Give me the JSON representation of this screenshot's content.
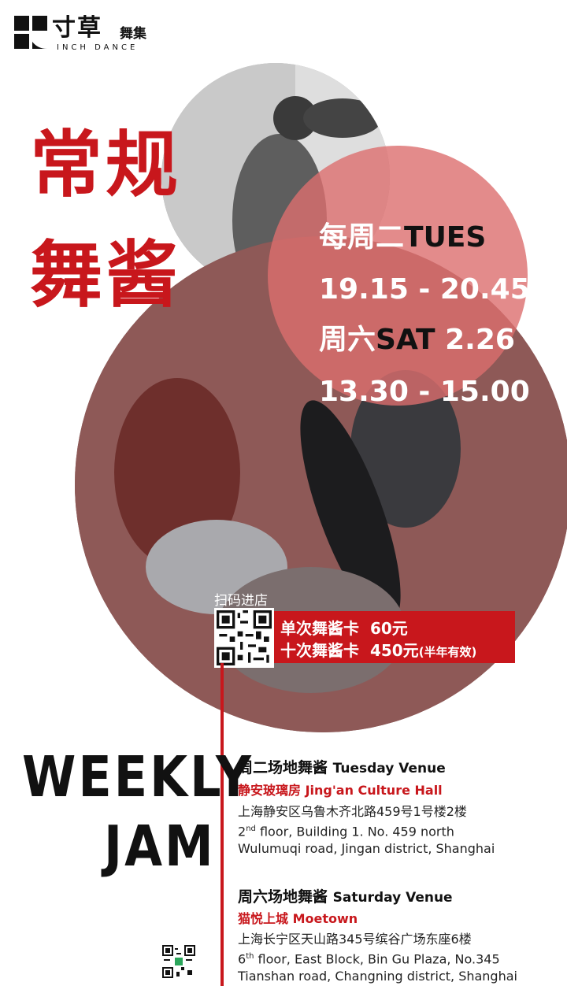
{
  "brand": {
    "cn_main": "寸草",
    "cn_sub": "舞集",
    "en": "INCH DANCE"
  },
  "title": {
    "line1": "常规",
    "line2": "舞酱"
  },
  "schedule": {
    "tue_cn": "每周二",
    "tue_en": "TUES",
    "tue_time": "19.15 - 20.45",
    "sat_cn": "周六",
    "sat_en": "SAT",
    "sat_date": "2.26",
    "sat_time": "13.30 - 15.00"
  },
  "store": {
    "scan_label": "扫码进店",
    "single_label": "单次舞酱卡",
    "single_price": "60元",
    "ten_label": "十次舞酱卡",
    "ten_price": "450元",
    "ten_note": "(半年有效)"
  },
  "headline": {
    "line1": "WEEKLY",
    "line2": "JAM"
  },
  "tuesday_venue": {
    "title_cn": "周二场地舞酱",
    "title_en": "Tuesday Venue",
    "name_cn": "静安玻璃房",
    "name_en": "Jing'an Culture Hall",
    "addr_cn": "上海静安区乌鲁木齐北路459号1号楼2楼",
    "addr_en_1a": "2",
    "addr_en_1sup": "nd",
    "addr_en_1b": " floor, Building 1. No. 459 north",
    "addr_en_2": "Wulumuqi road, Jingan district, Shanghai"
  },
  "saturday_venue": {
    "title_cn": "周六场地舞酱",
    "title_en": "Saturday Venue",
    "name_cn": "猫悦上城",
    "name_en": "Moetown",
    "addr_cn": "上海长宁区天山路345号缤谷广场东座6楼",
    "addr_en_1a": "6",
    "addr_en_1sup": "th",
    "addr_en_1b": "  floor, East Block, Bin Gu Plaza, No.345",
    "addr_en_2": "Tianshan road, Changning district, Shanghai"
  },
  "colors": {
    "accent_red": "#c8171c",
    "circle_red": "#dc6e6e"
  }
}
